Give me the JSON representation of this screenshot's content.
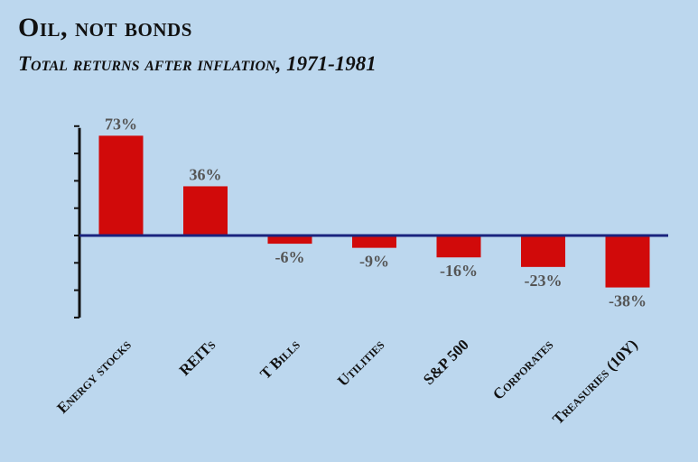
{
  "chart_data": {
    "type": "bar",
    "title": "Oil, not bonds",
    "subtitle": "Total returns after inflation, 1971-1981",
    "categories": [
      "Energy stocks",
      "REITs",
      "T Bills",
      "Utilities",
      "S&P 500",
      "Corporates",
      "Treasuries (10Y)"
    ],
    "values": [
      73,
      36,
      -6,
      -9,
      -16,
      -23,
      -38
    ],
    "value_labels": [
      "73%",
      "36%",
      "-6%",
      "-9%",
      "-16%",
      "-23%",
      "-38%"
    ],
    "ylim": [
      -60,
      80
    ],
    "xlabel": "",
    "ylabel": "",
    "grid": false,
    "bar_color": "#d10a0a",
    "zero_line_color": "#1a237e"
  }
}
